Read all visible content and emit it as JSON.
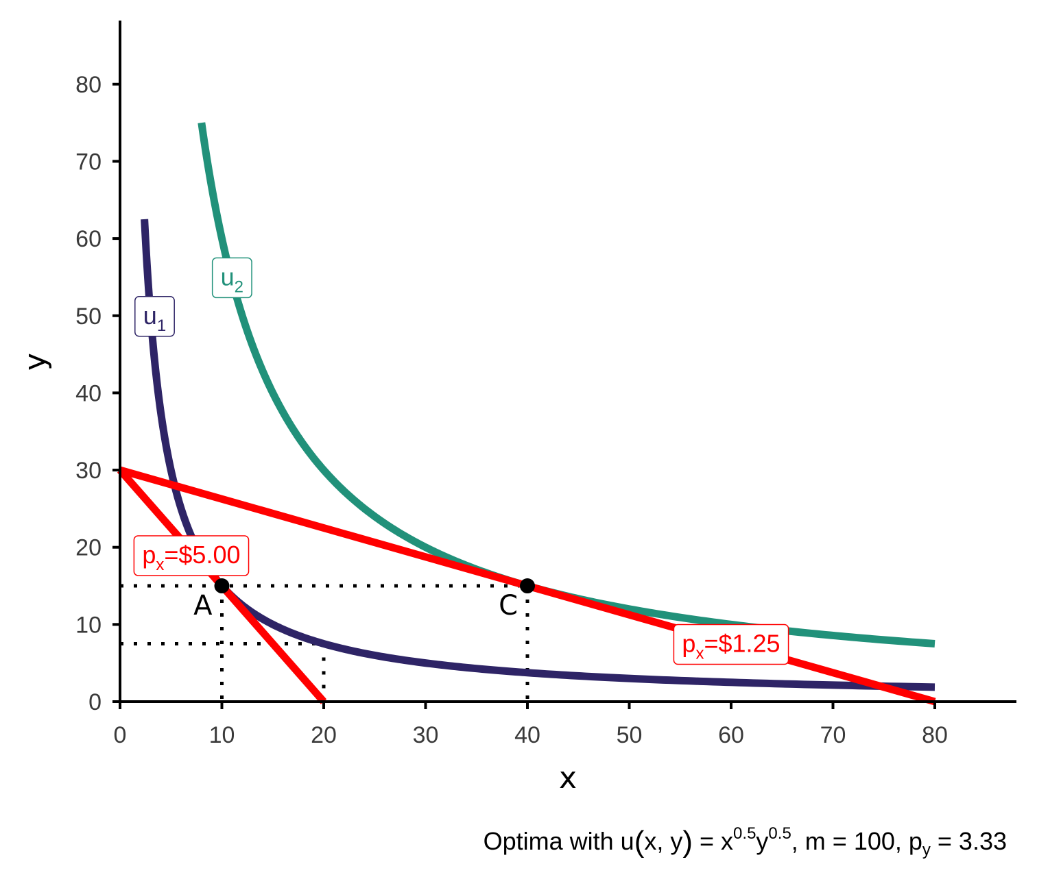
{
  "chart_data": {
    "type": "line",
    "xlabel": "x",
    "ylabel": "y",
    "xlim": [
      0,
      88
    ],
    "ylim": [
      0,
      88
    ],
    "x_ticks": [
      "0",
      "10",
      "20",
      "30",
      "40",
      "50",
      "60",
      "70",
      "80"
    ],
    "y_ticks": [
      "0",
      "10",
      "20",
      "30",
      "40",
      "50",
      "60",
      "70",
      "80"
    ],
    "x_tick_values": [
      0,
      10,
      20,
      30,
      40,
      50,
      60,
      70,
      80
    ],
    "y_tick_values": [
      0,
      10,
      20,
      30,
      40,
      50,
      60,
      70,
      80
    ],
    "colors": {
      "u1": "#2e2466",
      "u2": "#21917a",
      "budget": "#ff0000",
      "point": "#000000"
    },
    "indifference_curves": [
      {
        "label_main": "u",
        "label_sub": "1",
        "utility_sq": 150,
        "x_from": 2.4,
        "x_to": 80,
        "label_at": [
          3.4,
          50
        ]
      },
      {
        "label_main": "u",
        "label_sub": "2",
        "utility_sq": 600,
        "x_from": 8,
        "x_to": 80,
        "label_at": [
          11,
          55
        ]
      }
    ],
    "budget_lines": [
      {
        "label_main": "p",
        "label_sub": "x",
        "label_rest": "=$5.00",
        "x_intercept": 20,
        "y_intercept": 30,
        "label_at": [
          7,
          19
        ]
      },
      {
        "label_main": "p",
        "label_sub": "x",
        "label_rest": "=$1.25",
        "x_intercept": 80,
        "y_intercept": 30,
        "label_at": [
          60,
          7.5
        ]
      }
    ],
    "points": [
      {
        "name": "A",
        "x": 10,
        "y": 15
      },
      {
        "name": "C",
        "x": 40,
        "y": 15
      }
    ],
    "guides": [
      {
        "x": 10,
        "y": 15
      },
      {
        "x": 40,
        "y": 15
      },
      {
        "x": 20,
        "y": 7.5
      }
    ],
    "caption": {
      "t1": "Optima with u",
      "t2": "(",
      "t3": "x, y",
      "t4": ")",
      "t5": " = x",
      "sup1": "0.5",
      "t6": "y",
      "sup2": "0.5",
      "t7": ", m = 100, p",
      "sub": "y",
      "t8": " = 3.33"
    }
  }
}
